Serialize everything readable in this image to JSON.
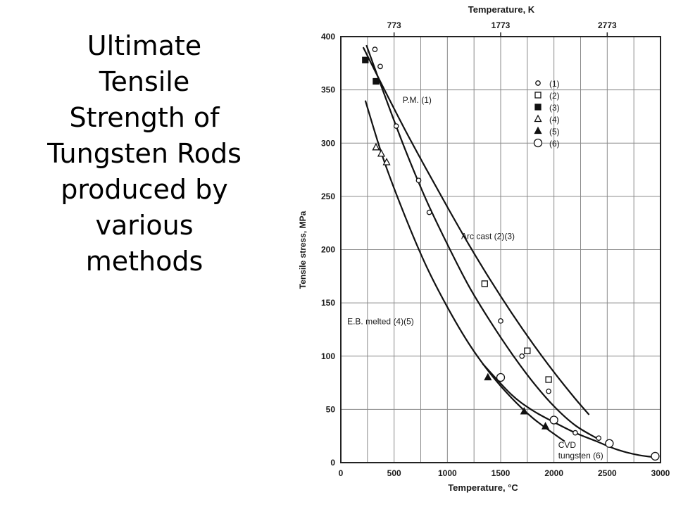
{
  "slide": {
    "title_lines": [
      "Ultimate",
      "Tensile",
      "Strength of",
      "Tungsten Rods",
      "produced by",
      "various",
      "methods"
    ]
  },
  "chart_data": {
    "type": "scatter",
    "title": "",
    "xlabel": "Temperature, °C",
    "ylabel": "Tensile stress, MPa",
    "x2label": "Temperature, K",
    "xlim": [
      0,
      3000
    ],
    "ylim": [
      0,
      400
    ],
    "xticks": [
      0,
      500,
      1000,
      1500,
      2000,
      2500,
      3000
    ],
    "yticks": [
      0,
      50,
      100,
      150,
      200,
      250,
      300,
      350,
      400
    ],
    "x2ticks": [
      773,
      1773,
      2773
    ],
    "grid": true,
    "legend_position": "top-right",
    "legend": [
      {
        "label": "(1)",
        "marker": "small-open-circle"
      },
      {
        "label": "(2)",
        "marker": "open-square"
      },
      {
        "label": "(3)",
        "marker": "filled-square"
      },
      {
        "label": "(4)",
        "marker": "open-triangle"
      },
      {
        "label": "(5)",
        "marker": "filled-triangle"
      },
      {
        "label": "(6)",
        "marker": "large-open-circle"
      }
    ],
    "series": [
      {
        "name": "(1)",
        "marker": "small-open-circle",
        "x": [
          320,
          370,
          520,
          730,
          830,
          1500,
          1700,
          1950,
          2200,
          2420
        ],
        "y": [
          388,
          372,
          316,
          265,
          235,
          133,
          100,
          67,
          28,
          23
        ]
      },
      {
        "name": "(2)",
        "marker": "open-square",
        "x": [
          1350,
          1750,
          1950
        ],
        "y": [
          168,
          105,
          78
        ]
      },
      {
        "name": "(3)",
        "marker": "filled-square",
        "x": [
          230,
          330
        ],
        "y": [
          378,
          358
        ]
      },
      {
        "name": "(4)",
        "marker": "open-triangle",
        "x": [
          330,
          380,
          430
        ],
        "y": [
          296,
          290,
          282
        ]
      },
      {
        "name": "(5)",
        "marker": "filled-triangle",
        "x": [
          1380,
          1720,
          1920
        ],
        "y": [
          80,
          48,
          34
        ]
      },
      {
        "name": "(6)",
        "marker": "large-open-circle",
        "x": [
          1500,
          2000,
          2520,
          2950
        ],
        "y": [
          80,
          40,
          18,
          6
        ]
      }
    ],
    "curves": [
      {
        "label": "P.M. (1)",
        "label_x": 580,
        "label_y": 338,
        "x": [
          240,
          400,
          600,
          800,
          1000,
          1200,
          1400,
          1600,
          1800,
          2000,
          2200,
          2400
        ],
        "y": [
          392,
          348,
          295,
          247,
          205,
          166,
          133,
          103,
          76,
          53,
          35,
          23
        ]
      },
      {
        "name": "Arc cast (2)(3)",
        "label": "Arc cast (2)(3)",
        "label_x": 1130,
        "label_y": 210,
        "x": [
          210,
          400,
          600,
          800,
          1000,
          1200,
          1400,
          1600,
          1800,
          2000,
          2200,
          2330
        ],
        "y": [
          390,
          352,
          313,
          276,
          240,
          205,
          172,
          141,
          112,
          85,
          60,
          45
        ]
      },
      {
        "name": "E.B. melted (4)(5)",
        "label": "E.B. melted (4)(5)",
        "label_x": 60,
        "label_y": 130,
        "x": [
          230,
          400,
          600,
          800,
          1000,
          1200,
          1400,
          1600,
          1800,
          2000,
          2100
        ],
        "y": [
          340,
          285,
          232,
          185,
          146,
          112,
          84,
          61,
          42,
          27,
          20
        ]
      },
      {
        "name": "CVD tungsten (6)",
        "label": "CVD",
        "label_x": 2040,
        "label_y": 14,
        "x": [
          1330,
          1600,
          1800,
          2000,
          2200,
          2400,
          2600,
          2800,
          2960
        ],
        "y": [
          93,
          64,
          49,
          38,
          28,
          20,
          12,
          7,
          5
        ]
      }
    ],
    "annotations": [
      "tungsten (6)"
    ]
  }
}
